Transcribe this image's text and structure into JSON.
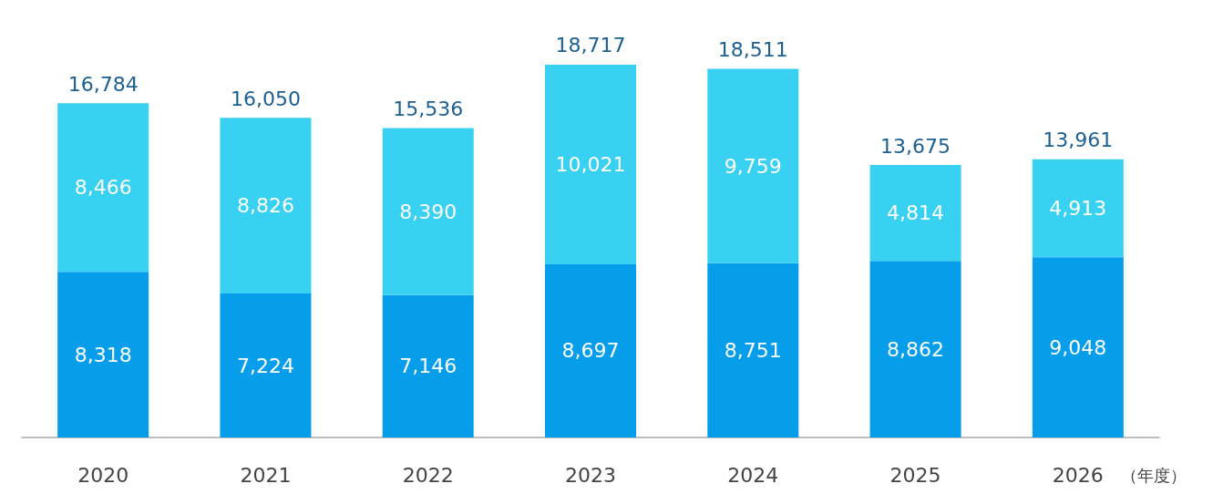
{
  "chart_data": {
    "type": "bar",
    "stacked": true,
    "categories": [
      "2020",
      "2021",
      "2022",
      "2023",
      "2024",
      "2025",
      "2026"
    ],
    "xlabel": "（年度）",
    "series": [
      {
        "color": "#069eea",
        "values": [
          8318,
          7224,
          7146,
          8697,
          8751,
          8862,
          9048
        ],
        "value_labels": [
          "8,318",
          "7,224",
          "7,146",
          "8,697",
          "8,751",
          "8,862",
          "9,048"
        ]
      },
      {
        "color": "#38d1f2",
        "values": [
          8466,
          8826,
          8390,
          10021,
          9759,
          4814,
          4913
        ],
        "value_labels": [
          "8,466",
          "8,826",
          "8,390",
          "10,021",
          "9,759",
          "4,814",
          "4,913"
        ]
      }
    ],
    "totals": [
      "16,784",
      "16,050",
      "15,536",
      "18,717",
      "18,511",
      "13,675",
      "13,961"
    ]
  }
}
